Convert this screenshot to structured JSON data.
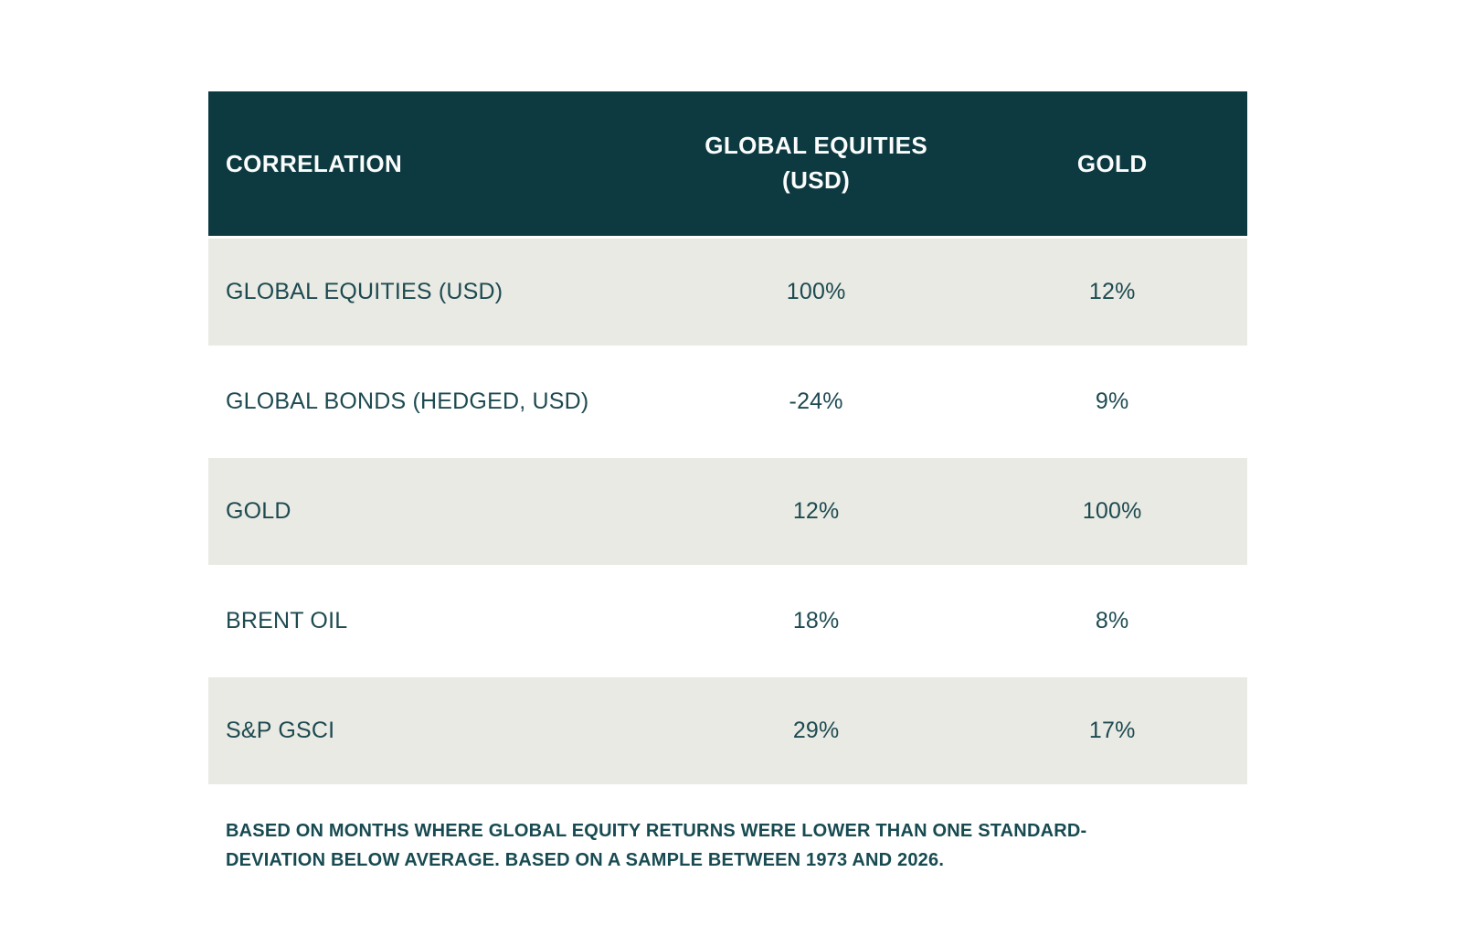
{
  "colors": {
    "header_bg": "#0d3a41",
    "header_text": "#ffffff",
    "stripe_bg": "#e9eae3",
    "body_text": "#1d4a51",
    "page_bg": "#ffffff"
  },
  "table": {
    "columns": [
      {
        "label": "CORRELATION"
      },
      {
        "label": "GLOBAL EQUITIES (USD)"
      },
      {
        "label": "GOLD"
      }
    ],
    "rows": [
      {
        "label": "GLOBAL EQUITIES (USD)",
        "values": [
          "100%",
          "12%"
        ]
      },
      {
        "label": "GLOBAL BONDS (HEDGED, USD)",
        "values": [
          "-24%",
          "9%"
        ]
      },
      {
        "label": "GOLD",
        "values": [
          "12%",
          "100%"
        ]
      },
      {
        "label": "BRENT OIL",
        "values": [
          "18%",
          "8%"
        ]
      },
      {
        "label": "S&P GSCI",
        "values": [
          "29%",
          "17%"
        ]
      }
    ]
  },
  "footnote_lines": [
    "BASED ON MONTHS WHERE GLOBAL EQUITY RETURNS WERE LOWER THAN ONE STANDARD-",
    "DEVIATION BELOW AVERAGE. BASED ON A SAMPLE BETWEEN 1973 AND 2026."
  ],
  "chart_data": {
    "type": "table",
    "title": "CORRELATION",
    "categories": [
      "GLOBAL EQUITIES (USD)",
      "GLOBAL BONDS (HEDGED, USD)",
      "GOLD",
      "BRENT OIL",
      "S&P GSCI"
    ],
    "series": [
      {
        "name": "GLOBAL EQUITIES (USD)",
        "unit": "%",
        "values": [
          100,
          -24,
          12,
          18,
          29
        ]
      },
      {
        "name": "GOLD",
        "unit": "%",
        "values": [
          12,
          9,
          100,
          8,
          17
        ]
      }
    ],
    "note": "BASED ON MONTHS WHERE GLOBAL EQUITY RETURNS WERE LOWER THAN ONE STANDARD-DEVIATION BELOW AVERAGE. BASED ON A SAMPLE BETWEEN 1973 AND 2026."
  }
}
